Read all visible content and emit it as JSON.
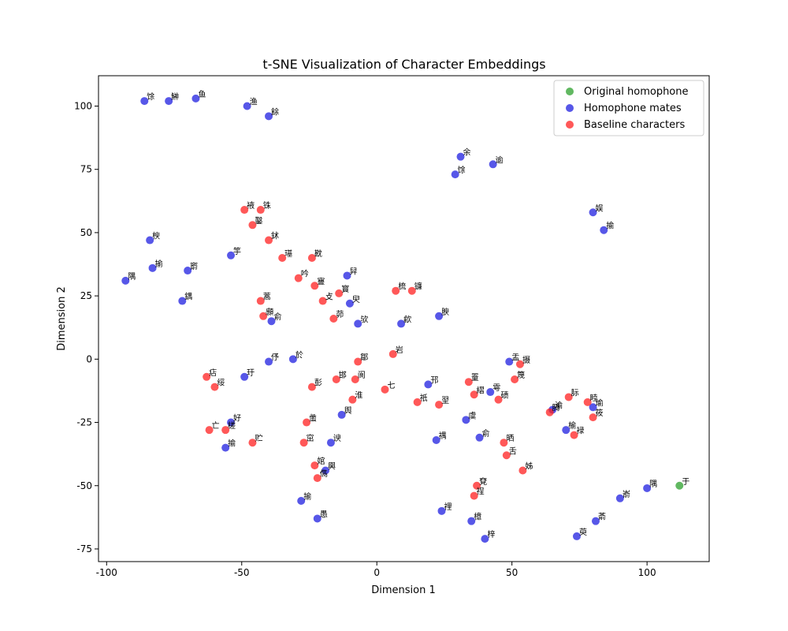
{
  "chart_data": {
    "type": "scatter",
    "title": "t-SNE Visualization of Character Embeddings",
    "xlabel": "Dimension 1",
    "ylabel": "Dimension 2",
    "xlim": [
      -103,
      123
    ],
    "ylim": [
      -80,
      112
    ],
    "xticks": [
      -100,
      -50,
      0,
      50,
      100
    ],
    "yticks": [
      -75,
      -50,
      -25,
      0,
      25,
      50,
      75,
      100
    ],
    "grid": false,
    "legend_position": "top-right",
    "series": [
      {
        "name": "Original homophone",
        "color": "#2ca02c",
        "points": [
          {
            "x": 112,
            "y": -50,
            "label": "于"
          }
        ]
      },
      {
        "name": "Homophone mates",
        "color": "#1f1fe0",
        "points": [
          {
            "x": -86,
            "y": 102,
            "label": "馀"
          },
          {
            "x": -77,
            "y": 102,
            "label": "鰰"
          },
          {
            "x": -67,
            "y": 103,
            "label": "鱼"
          },
          {
            "x": -48,
            "y": 100,
            "label": "渔"
          },
          {
            "x": -40,
            "y": 96,
            "label": "餘"
          },
          {
            "x": 31,
            "y": 80,
            "label": "余"
          },
          {
            "x": 43,
            "y": 77,
            "label": "逾"
          },
          {
            "x": 29,
            "y": 73,
            "label": "馀"
          },
          {
            "x": 80,
            "y": 58,
            "label": "娱"
          },
          {
            "x": 84,
            "y": 51,
            "label": "揄"
          },
          {
            "x": -84,
            "y": 47,
            "label": "楰"
          },
          {
            "x": -54,
            "y": 41,
            "label": "竽"
          },
          {
            "x": -83,
            "y": 36,
            "label": "揄"
          },
          {
            "x": -70,
            "y": 35,
            "label": "窬"
          },
          {
            "x": -93,
            "y": 31,
            "label": "隅"
          },
          {
            "x": -72,
            "y": 23,
            "label": "鍝"
          },
          {
            "x": -11,
            "y": 33,
            "label": "舁"
          },
          {
            "x": -10,
            "y": 22,
            "label": "臾"
          },
          {
            "x": -7,
            "y": 14,
            "label": "欤"
          },
          {
            "x": 9,
            "y": 14,
            "label": "歈"
          },
          {
            "x": 23,
            "y": 17,
            "label": "腴"
          },
          {
            "x": -39,
            "y": 15,
            "label": "俞"
          },
          {
            "x": -40,
            "y": -1,
            "label": "伃"
          },
          {
            "x": -31,
            "y": 0,
            "label": "於"
          },
          {
            "x": -49,
            "y": -7,
            "label": "玗"
          },
          {
            "x": 49,
            "y": -1,
            "label": "盂"
          },
          {
            "x": 19,
            "y": -10,
            "label": "邘"
          },
          {
            "x": 42,
            "y": -13,
            "label": "雩"
          },
          {
            "x": 80,
            "y": -19,
            "label": "瑜"
          },
          {
            "x": -54,
            "y": -25,
            "label": "好"
          },
          {
            "x": -13,
            "y": -22,
            "label": "舆"
          },
          {
            "x": 33,
            "y": -24,
            "label": "虞"
          },
          {
            "x": 70,
            "y": -28,
            "label": "榆"
          },
          {
            "x": -56,
            "y": -35,
            "label": "揄"
          },
          {
            "x": -17,
            "y": -33,
            "label": "谀"
          },
          {
            "x": 22,
            "y": -32,
            "label": "禑"
          },
          {
            "x": 38,
            "y": -31,
            "label": "俞"
          },
          {
            "x": -19,
            "y": -44,
            "label": "輿"
          },
          {
            "x": -28,
            "y": -56,
            "label": "揄"
          },
          {
            "x": -22,
            "y": -63,
            "label": "愚"
          },
          {
            "x": 24,
            "y": -60,
            "label": "𥚃"
          },
          {
            "x": 35,
            "y": -64,
            "label": "檍"
          },
          {
            "x": 40,
            "y": -71,
            "label": "梓"
          },
          {
            "x": 90,
            "y": -55,
            "label": "嵛"
          },
          {
            "x": 100,
            "y": -51,
            "label": "隅"
          },
          {
            "x": 81,
            "y": -64,
            "label": "萮"
          },
          {
            "x": 74,
            "y": -70,
            "label": "萸"
          },
          {
            "x": 65,
            "y": -20,
            "label": "渝"
          }
        ]
      },
      {
        "name": "Baseline characters",
        "color": "#ff2020",
        "points": [
          {
            "x": -49,
            "y": 59,
            "label": "䘸"
          },
          {
            "x": -43,
            "y": 59,
            "label": "铢"
          },
          {
            "x": -46,
            "y": 53,
            "label": "鑿"
          },
          {
            "x": -40,
            "y": 47,
            "label": "鉥"
          },
          {
            "x": -35,
            "y": 40,
            "label": "璂"
          },
          {
            "x": -24,
            "y": 40,
            "label": "㽎"
          },
          {
            "x": -29,
            "y": 32,
            "label": "吟"
          },
          {
            "x": -23,
            "y": 29,
            "label": "寷"
          },
          {
            "x": -14,
            "y": 26,
            "label": "寳"
          },
          {
            "x": -20,
            "y": 23,
            "label": "攴"
          },
          {
            "x": -43,
            "y": 23,
            "label": "蒿"
          },
          {
            "x": -42,
            "y": 17,
            "label": "䫲"
          },
          {
            "x": -16,
            "y": 16,
            "label": "茆"
          },
          {
            "x": 7,
            "y": 27,
            "label": "梳"
          },
          {
            "x": 13,
            "y": 27,
            "label": "镰"
          },
          {
            "x": 6,
            "y": 2,
            "label": "岩"
          },
          {
            "x": -7,
            "y": -1,
            "label": "鄒"
          },
          {
            "x": -63,
            "y": -7,
            "label": "痁"
          },
          {
            "x": -60,
            "y": -11,
            "label": "绥"
          },
          {
            "x": -24,
            "y": -11,
            "label": "彭"
          },
          {
            "x": -15,
            "y": -8,
            "label": "邯"
          },
          {
            "x": -8,
            "y": -8,
            "label": "阆"
          },
          {
            "x": 3,
            "y": -12,
            "label": "七"
          },
          {
            "x": -9,
            "y": -16,
            "label": "淮"
          },
          {
            "x": 15,
            "y": -17,
            "label": "祇"
          },
          {
            "x": 23,
            "y": -18,
            "label": "䍿"
          },
          {
            "x": 34,
            "y": -9,
            "label": "罿"
          },
          {
            "x": 36,
            "y": -14,
            "label": "䌌"
          },
          {
            "x": 45,
            "y": -16,
            "label": "碛"
          },
          {
            "x": 51,
            "y": -8,
            "label": "篾"
          },
          {
            "x": 53,
            "y": -2,
            "label": "摄"
          },
          {
            "x": 71,
            "y": -15,
            "label": "䏡"
          },
          {
            "x": 78,
            "y": -17,
            "label": "睦"
          },
          {
            "x": 64,
            "y": -21,
            "label": "腾"
          },
          {
            "x": 80,
            "y": -23,
            "label": "筱"
          },
          {
            "x": 73,
            "y": -30,
            "label": "䘵"
          },
          {
            "x": -26,
            "y": -25,
            "label": "䗍"
          },
          {
            "x": -62,
            "y": -28,
            "label": "亡"
          },
          {
            "x": -56,
            "y": -28,
            "label": "槎"
          },
          {
            "x": -46,
            "y": -33,
            "label": "贮"
          },
          {
            "x": -27,
            "y": -33,
            "label": "窋"
          },
          {
            "x": -23,
            "y": -42,
            "label": "婠"
          },
          {
            "x": -22,
            "y": -47,
            "label": "儁"
          },
          {
            "x": 47,
            "y": -33,
            "label": "晒"
          },
          {
            "x": 48,
            "y": -38,
            "label": "舌"
          },
          {
            "x": 54,
            "y": -44,
            "label": "姊"
          },
          {
            "x": 37,
            "y": -50,
            "label": "䙽"
          },
          {
            "x": 36,
            "y": -54,
            "label": "䄇"
          }
        ]
      }
    ]
  }
}
